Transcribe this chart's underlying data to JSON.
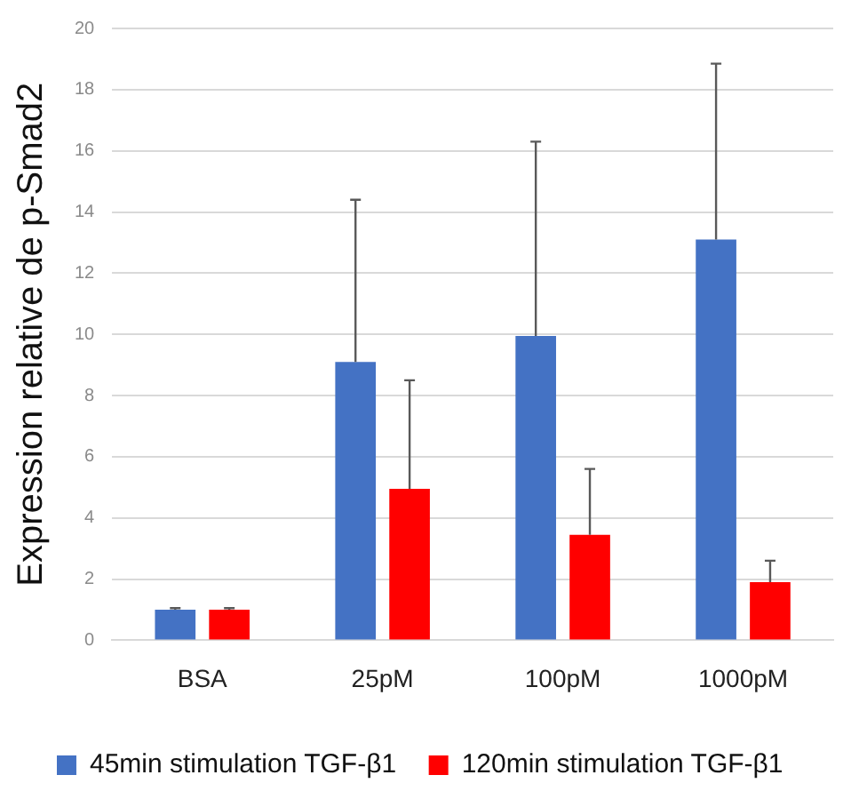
{
  "chart_data": {
    "type": "bar",
    "ylabel": "Expression relative de p-Smad2",
    "categories": [
      "BSA",
      "25pM",
      "100pM",
      "1000pM"
    ],
    "series": [
      {
        "name": "45min stimulation TGF-β1",
        "color": "#4472c4",
        "values": [
          1.0,
          9.1,
          9.95,
          13.1
        ],
        "errors": [
          [
            1.0,
            1.05
          ],
          [
            9.1,
            14.4
          ],
          [
            9.95,
            16.3
          ],
          [
            13.1,
            18.85
          ]
        ]
      },
      {
        "name": "120min stimulation TGF-β1",
        "color": "#ff0000",
        "values": [
          1.0,
          4.95,
          3.45,
          1.9
        ],
        "errors": [
          [
            1.0,
            1.05
          ],
          [
            4.95,
            8.5
          ],
          [
            3.45,
            5.6
          ],
          [
            1.9,
            2.6
          ]
        ]
      }
    ],
    "ylim": [
      0,
      20
    ],
    "yticks": [
      0,
      2,
      4,
      6,
      8,
      10,
      12,
      14,
      16,
      18,
      20
    ],
    "grid": "y",
    "legend": "bottom"
  }
}
